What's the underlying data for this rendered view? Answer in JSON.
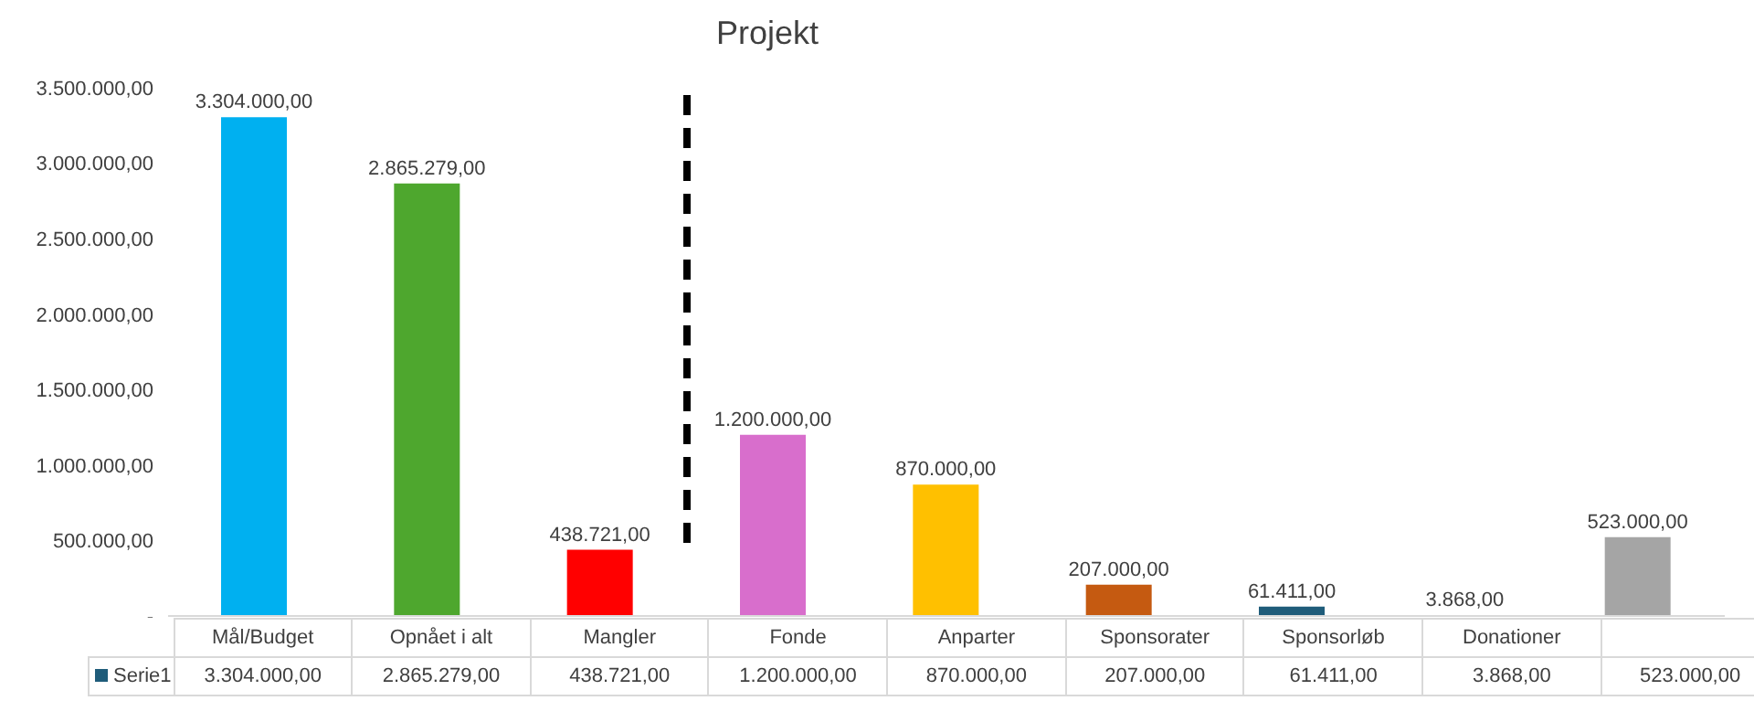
{
  "chart_data": {
    "type": "bar",
    "title": "Projekt",
    "categories": [
      "Mål/Budget",
      "Opnået i alt",
      "Mangler",
      "Fonde",
      "Anparter",
      "Sponsorater",
      "Sponsorløb",
      "Donationer",
      null
    ],
    "series": [
      {
        "name": "Serie1",
        "color": "#1f5c7a",
        "colors": [
          "#00b0f0",
          "#4ea72e",
          "#ff0000",
          "#d86ecc",
          "#ffc000",
          "#c55a11",
          "#1f5c7a",
          "#7f7f7f",
          "#a5a5a5"
        ],
        "values": [
          3304000,
          2865279,
          438721,
          1200000,
          870000,
          207000,
          61411,
          3868,
          523000
        ],
        "value_labels": [
          "3.304.000,00",
          "2.865.279,00",
          "438.721,00",
          "1.200.000,00",
          "870.000,00",
          "207.000,00",
          "61.411,00",
          "3.868,00",
          "523.000,00"
        ]
      }
    ],
    "ylim": [
      0,
      3500000
    ],
    "yticks": [
      {
        "value": 0,
        "label": "-"
      },
      {
        "value": 500000,
        "label": "500.000,00"
      },
      {
        "value": 1000000,
        "label": "1.000.000,00"
      },
      {
        "value": 1500000,
        "label": "1.500.000,00"
      },
      {
        "value": 2000000,
        "label": "2.000.000,00"
      },
      {
        "value": 2500000,
        "label": "2.500.000,00"
      },
      {
        "value": 3000000,
        "label": "3.000.000,00"
      },
      {
        "value": 3500000,
        "label": "3.500.000,00"
      }
    ],
    "legend": "bottom"
  }
}
